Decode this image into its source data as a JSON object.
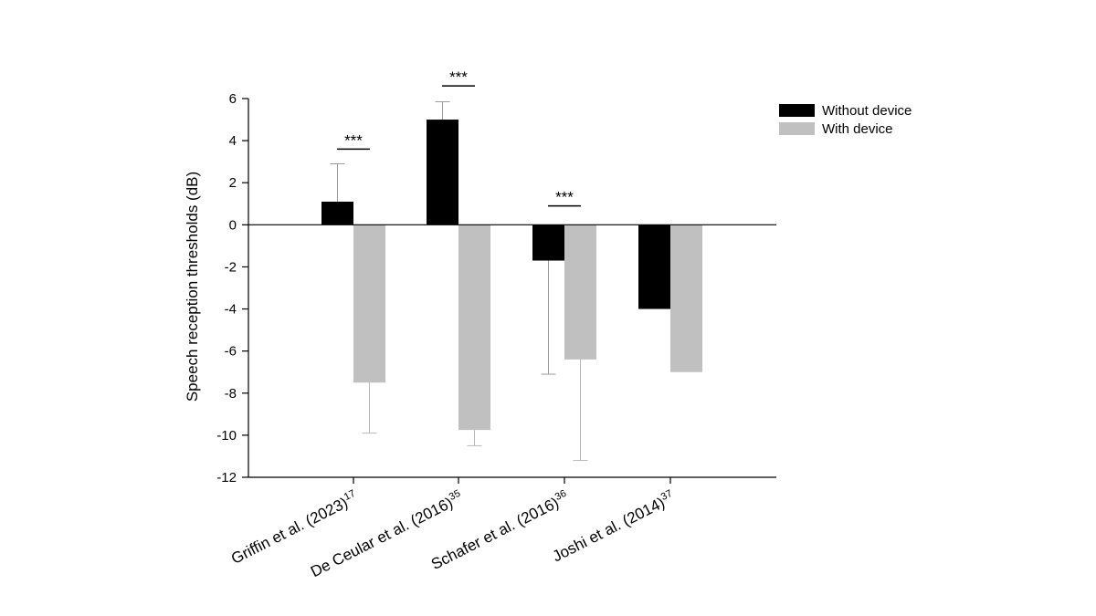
{
  "chart_data": {
    "type": "bar",
    "title": "",
    "xlabel": "",
    "ylabel": "Speech reception thresholds (dB)",
    "ylim": [
      -12,
      6
    ],
    "yticks": [
      6,
      4,
      2,
      0,
      -2,
      -4,
      -6,
      -8,
      -10,
      -12
    ],
    "grid": false,
    "legend_position": "top-right",
    "categories": [
      {
        "text": "Griffin et al. (2023)",
        "ref": "17"
      },
      {
        "text": "De Ceular et al. (2016)",
        "ref": "35"
      },
      {
        "text": "Schafer et al. (2016)",
        "ref": "36"
      },
      {
        "text": "Joshi et al. (2014)",
        "ref": "37"
      }
    ],
    "series": [
      {
        "name": "Without device",
        "color": "#000000",
        "values": [
          1.1,
          5.0,
          -1.7,
          -4.0
        ],
        "error_tips": [
          2.9,
          5.85,
          -7.1,
          null
        ]
      },
      {
        "name": "With device",
        "color": "#c0c0c0",
        "values": [
          -7.5,
          -9.75,
          -6.4,
          -7.0
        ],
        "error_tips": [
          -9.9,
          -10.5,
          -11.2,
          null
        ]
      }
    ],
    "significance": [
      {
        "category_index": 0,
        "label": "***",
        "y": 3.6
      },
      {
        "category_index": 1,
        "label": "***",
        "y": 6.6
      },
      {
        "category_index": 2,
        "label": "***",
        "y": 0.9
      }
    ]
  }
}
